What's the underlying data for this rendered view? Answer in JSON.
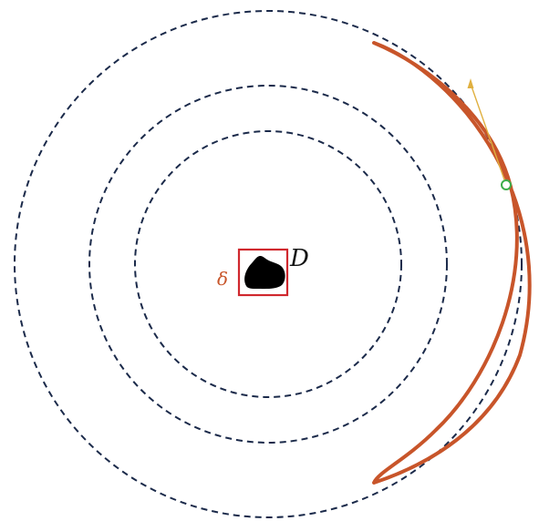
{
  "labels": {
    "domain": "D",
    "box": "δ"
  },
  "colors": {
    "background": "#ffffff",
    "circle_stroke": "#1b2a4a",
    "crescent_stroke": "#c8552a",
    "box_stroke": "#d0282e",
    "box_label": "#c8552a",
    "blob_fill": "#000000",
    "arrow": "#e0b040",
    "point": "#3cae4a",
    "domain_label": "#111111"
  }
}
